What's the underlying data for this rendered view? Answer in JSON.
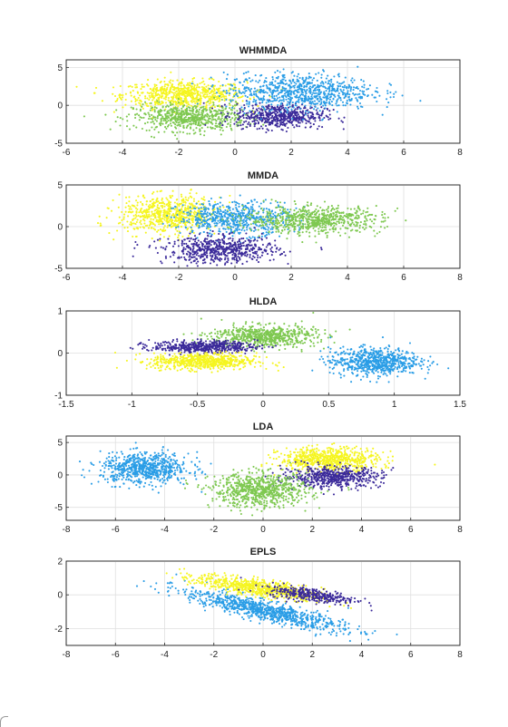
{
  "colors": {
    "yellow": "#f5f520",
    "green": "#7ec850",
    "cyan": "#2a9de6",
    "purple": "#3b2a9a"
  },
  "chart_data": [
    {
      "type": "scatter",
      "title": "WHMMDA",
      "xlim": [
        -6,
        8
      ],
      "ylim": [
        -5,
        6
      ],
      "xticks": [
        -6,
        -4,
        -2,
        0,
        2,
        4,
        6,
        8
      ],
      "yticks": [
        -5,
        0,
        5
      ],
      "grid": true,
      "clusters": [
        {
          "color": "yellow",
          "center": [
            -1.8,
            1.4
          ],
          "spread": [
            1.1,
            0.9
          ],
          "count": 700,
          "rot": 0
        },
        {
          "color": "green",
          "center": [
            -1.6,
            -1.6
          ],
          "spread": [
            1.0,
            0.9
          ],
          "count": 650,
          "rot": 0
        },
        {
          "color": "purple",
          "center": [
            1.6,
            -1.4
          ],
          "spread": [
            0.8,
            0.8
          ],
          "count": 550,
          "rot": 0
        },
        {
          "color": "cyan",
          "center": [
            2.3,
            1.8
          ],
          "spread": [
            1.3,
            1.2
          ],
          "count": 800,
          "rot": 0
        }
      ]
    },
    {
      "type": "scatter",
      "title": "MMDA",
      "xlim": [
        -6,
        8
      ],
      "ylim": [
        -5,
        5
      ],
      "xticks": [
        -6,
        -4,
        -2,
        0,
        2,
        4,
        6,
        8
      ],
      "yticks": [
        -5,
        0,
        5
      ],
      "grid": true,
      "clusters": [
        {
          "color": "yellow",
          "center": [
            -2.3,
            1.4
          ],
          "spread": [
            0.9,
            1.1
          ],
          "count": 700,
          "rot": 0
        },
        {
          "color": "cyan",
          "center": [
            0.0,
            1.0
          ],
          "spread": [
            1.0,
            1.0
          ],
          "count": 600,
          "rot": 0
        },
        {
          "color": "green",
          "center": [
            2.8,
            0.8
          ],
          "spread": [
            1.2,
            0.8
          ],
          "count": 700,
          "rot": 0
        },
        {
          "color": "purple",
          "center": [
            -0.5,
            -2.8
          ],
          "spread": [
            1.0,
            0.8
          ],
          "count": 600,
          "rot": 0
        }
      ]
    },
    {
      "type": "scatter",
      "title": "HLDA",
      "xlim": [
        -1.5,
        1.5
      ],
      "ylim": [
        -1,
        1
      ],
      "xticks": [
        -1.5,
        -1,
        -0.5,
        0,
        0.5,
        1,
        1.5
      ],
      "yticks": [
        -1,
        0,
        1
      ],
      "grid": true,
      "clusters": [
        {
          "color": "green",
          "center": [
            0.0,
            0.4
          ],
          "spread": [
            0.2,
            0.13
          ],
          "count": 650,
          "rot": 0
        },
        {
          "color": "purple",
          "center": [
            -0.45,
            0.15
          ],
          "spread": [
            0.2,
            0.07
          ],
          "count": 500,
          "rot": 0
        },
        {
          "color": "yellow",
          "center": [
            -0.45,
            -0.2
          ],
          "spread": [
            0.2,
            0.1
          ],
          "count": 650,
          "rot": 0
        },
        {
          "color": "cyan",
          "center": [
            0.85,
            -0.2
          ],
          "spread": [
            0.17,
            0.16
          ],
          "count": 700,
          "rot": 0
        }
      ]
    },
    {
      "type": "scatter",
      "title": "LDA",
      "xlim": [
        -8,
        8
      ],
      "ylim": [
        -7,
        6
      ],
      "xticks": [
        -8,
        -6,
        -4,
        -2,
        0,
        2,
        4,
        6,
        8
      ],
      "yticks": [
        -5,
        0,
        5
      ],
      "grid": true,
      "clusters": [
        {
          "color": "cyan",
          "center": [
            -4.8,
            1.0
          ],
          "spread": [
            0.9,
            1.2
          ],
          "count": 700,
          "rot": 0
        },
        {
          "color": "yellow",
          "center": [
            2.7,
            2.4
          ],
          "spread": [
            1.0,
            0.9
          ],
          "count": 700,
          "rot": 0
        },
        {
          "color": "purple",
          "center": [
            2.8,
            -0.3
          ],
          "spread": [
            1.0,
            0.8
          ],
          "count": 550,
          "rot": 0
        },
        {
          "color": "green",
          "center": [
            -0.1,
            -2.4
          ],
          "spread": [
            1.0,
            1.3
          ],
          "count": 750,
          "rot": 0
        }
      ]
    },
    {
      "type": "scatter",
      "title": "EPLS",
      "xlim": [
        -8,
        8
      ],
      "ylim": [
        -3,
        2
      ],
      "xticks": [
        -8,
        -6,
        -4,
        -2,
        0,
        2,
        4,
        6,
        8
      ],
      "yticks": [
        -2,
        0,
        2
      ],
      "grid": true,
      "clusters": [
        {
          "color": "cyan",
          "center": [
            0.0,
            -0.9
          ],
          "spread": [
            1.7,
            0.28
          ],
          "count": 900,
          "rot": -0.32
        },
        {
          "color": "yellow",
          "center": [
            -0.2,
            0.4
          ],
          "spread": [
            1.3,
            0.25
          ],
          "count": 700,
          "rot": -0.22
        },
        {
          "color": "purple",
          "center": [
            2.0,
            0.0
          ],
          "spread": [
            0.9,
            0.2
          ],
          "count": 350,
          "rot": -0.2
        }
      ]
    }
  ]
}
